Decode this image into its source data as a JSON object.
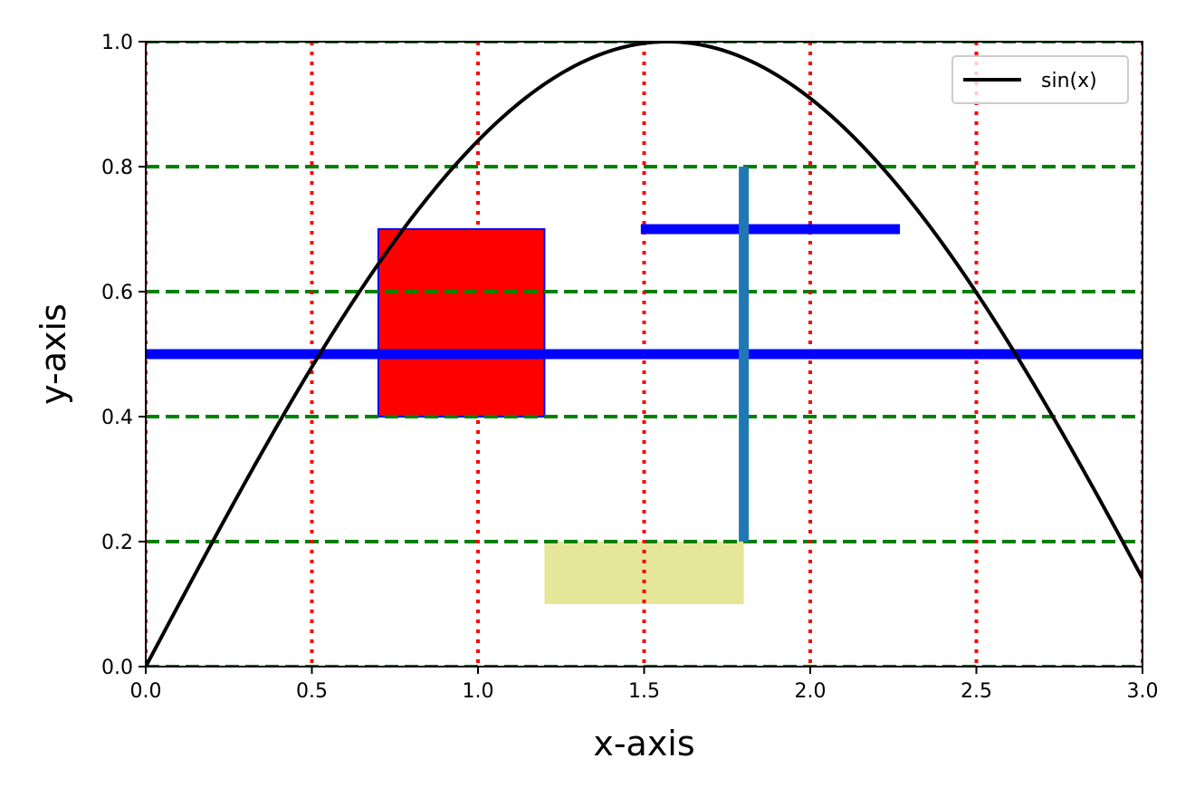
{
  "chart_data": {
    "type": "line",
    "title": "",
    "xlabel": "x-axis",
    "ylabel": "y-axis",
    "xlim": [
      0,
      3
    ],
    "ylim": [
      0,
      1
    ],
    "x_ticks": [
      "0.0",
      "0.5",
      "1.0",
      "1.5",
      "2.0",
      "2.5",
      "3.0"
    ],
    "y_ticks": [
      "0.0",
      "0.2",
      "0.4",
      "0.6",
      "0.8",
      "1.0"
    ],
    "grid": {
      "vertical": {
        "style": "dotted",
        "color": "#ff0000",
        "at": [
          0,
          0.5,
          1.0,
          1.5,
          2.0,
          2.5,
          3.0
        ]
      },
      "horizontal": {
        "style": "dashed",
        "color": "#008000",
        "at": [
          0,
          0.2,
          0.4,
          0.6,
          0.8,
          1.0
        ]
      }
    },
    "series": [
      {
        "name": "sin(x)",
        "function": "sin",
        "x_range": [
          0,
          3
        ],
        "color": "#000000"
      }
    ],
    "annotations": {
      "hlines": [
        {
          "y": 0.5,
          "xmin": 0,
          "xmax": 3,
          "color": "#0000ff"
        },
        {
          "y": 0.7,
          "xmin": 1.49,
          "xmax": 2.27,
          "color": "#0000ff"
        }
      ],
      "vlines": [
        {
          "x": 1.8,
          "ymin": 0.2,
          "ymax": 0.8,
          "color": "#1f77b4"
        }
      ],
      "rects": [
        {
          "x0": 0.7,
          "x1": 1.2,
          "y0": 0.4,
          "y1": 0.7,
          "fill": "#ff0000",
          "edge": "#0000ff"
        }
      ],
      "spans": [
        {
          "x0": 1.2,
          "x1": 1.8,
          "y0": 0.1,
          "y1": 0.2,
          "fill": "#e6e699"
        }
      ]
    },
    "legend": {
      "position": "top-right",
      "entries": [
        "sin(x)"
      ]
    }
  }
}
